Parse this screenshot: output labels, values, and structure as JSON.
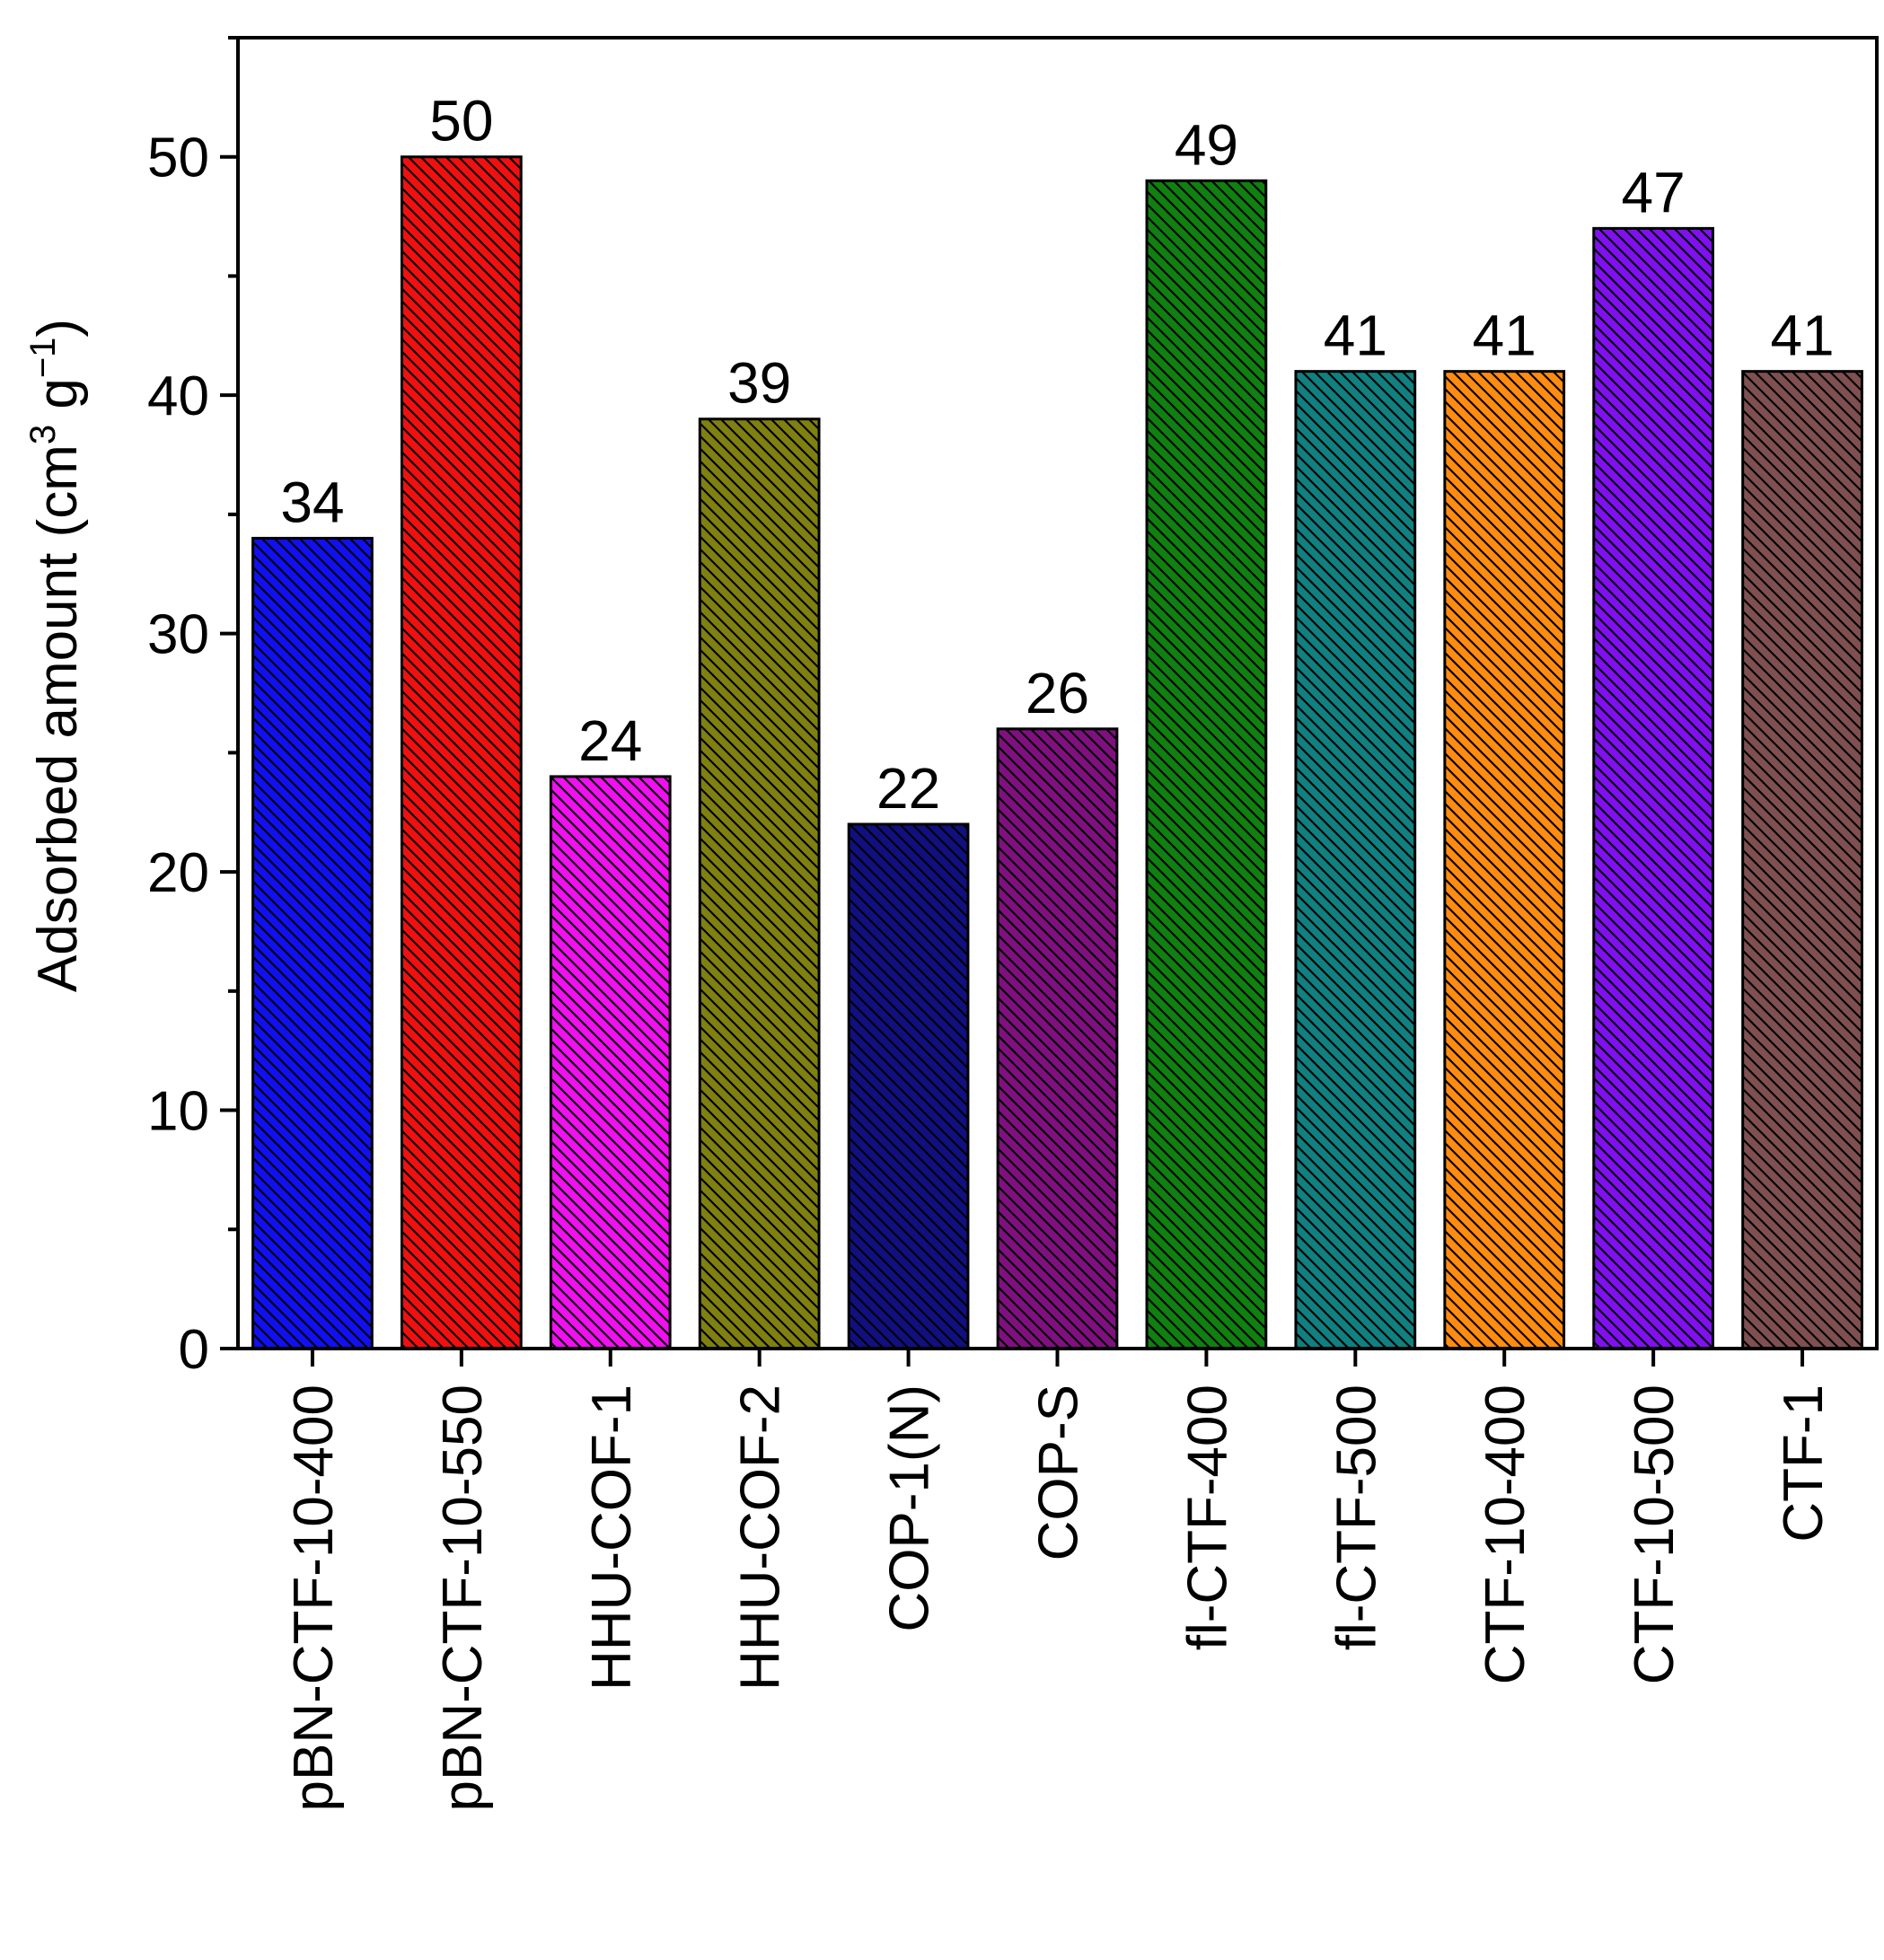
{
  "chart_data": {
    "type": "bar",
    "categories": [
      "pBN-CTF-10-400",
      "pBN-CTF-10-550",
      "HHU-COF-1",
      "HHU-COF-2",
      "COP-1(N)",
      "COP-S",
      "fl-CTF-400",
      "fl-CTF-500",
      "CTF-10-400",
      "CTF-10-500",
      "CTF-1"
    ],
    "values": [
      34,
      50,
      24,
      39,
      22,
      26,
      49,
      41,
      41,
      47,
      41
    ],
    "data_labels": [
      "34",
      "50",
      "24",
      "39",
      "22",
      "26",
      "49",
      "41",
      "41",
      "47",
      "41"
    ],
    "bar_colors": [
      "#1010f0",
      "#f01010",
      "#f010f0",
      "#808010",
      "#101080",
      "#801080",
      "#108010",
      "#108080",
      "#ff8c10",
      "#8010f0",
      "#805050"
    ],
    "pattern": "diagonal-hatch",
    "ylabel": {
      "main": "Adsorbed amount (cm",
      "sup1": "3",
      "mid": " g",
      "sup2": "−1",
      "end": ")"
    },
    "xlabel": "",
    "ylim": [
      0,
      55
    ],
    "yticks": [
      0,
      10,
      20,
      30,
      40,
      50
    ],
    "ytick_labels": [
      "0",
      "10",
      "20",
      "30",
      "40",
      "50"
    ],
    "grid": false,
    "legend": "none"
  }
}
